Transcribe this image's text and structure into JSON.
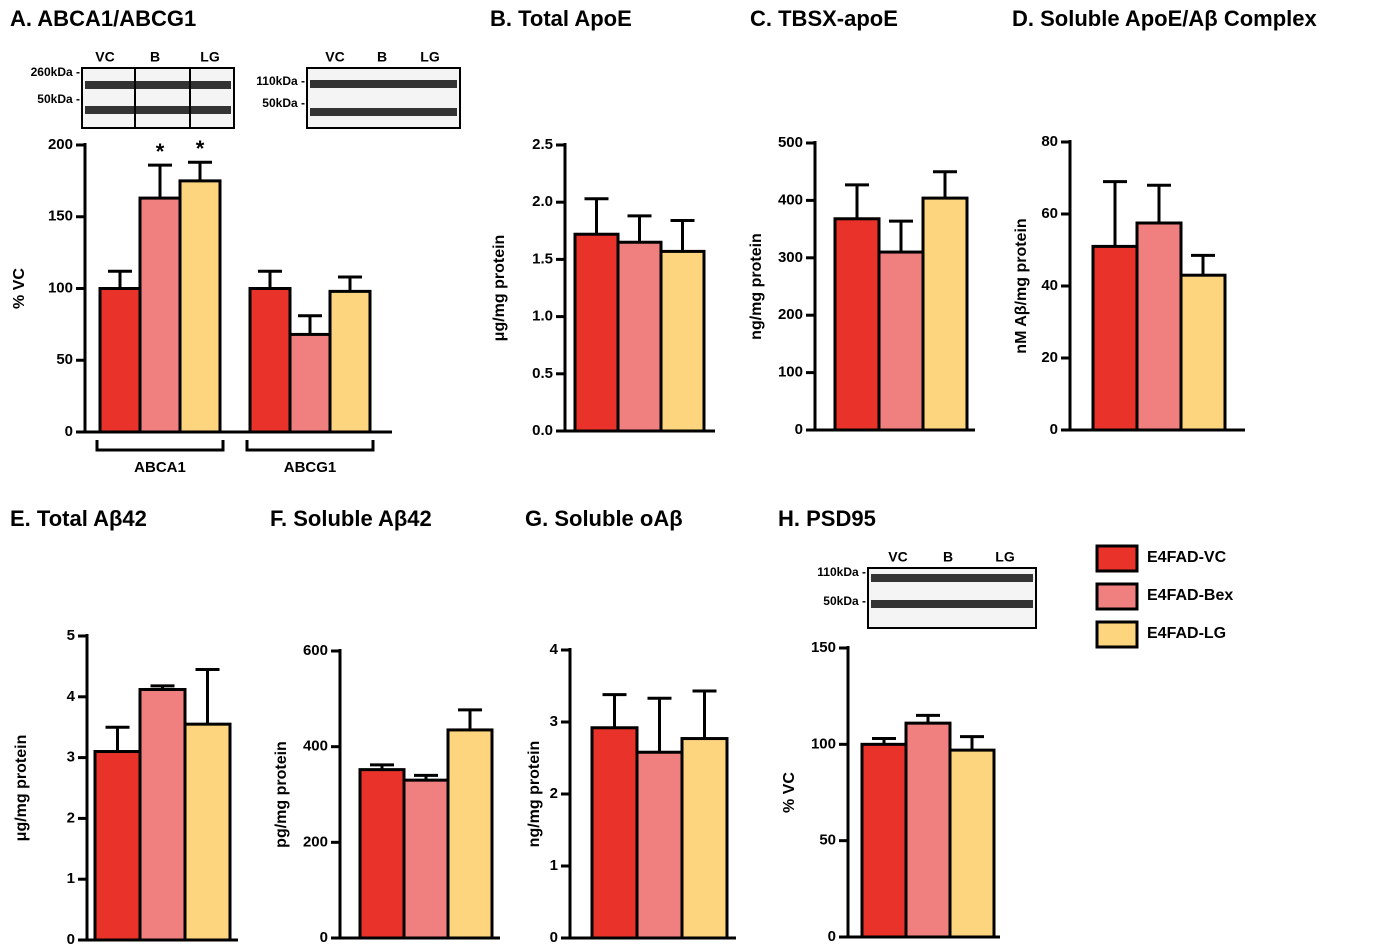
{
  "chart_data": [
    {
      "type": "bar",
      "title": "A. ABCA1/ABCG1",
      "ylabel": "% VC",
      "categories": [
        "ABCA1",
        "ABCG1"
      ],
      "series": [
        {
          "name": "E4FAD-VC",
          "color": "#e8322a",
          "values": [
            100,
            100
          ],
          "errors": [
            12,
            12
          ],
          "annotations": [
            null,
            null
          ]
        },
        {
          "name": "E4FAD-Bex",
          "color": "#f08080",
          "values": [
            163,
            68
          ],
          "errors": [
            23,
            13
          ],
          "annotations": [
            "*",
            null
          ]
        },
        {
          "name": "E4FAD-LG",
          "color": "#fdd57e",
          "values": [
            175,
            98
          ],
          "errors": [
            13,
            10
          ],
          "annotations": [
            "*",
            null
          ]
        }
      ],
      "ylim": [
        0,
        200
      ],
      "yticks": [
        0,
        50,
        100,
        150,
        200
      ],
      "blots": [
        {
          "lanes": [
            "VC",
            "B",
            "LG"
          ],
          "markers": [
            "260kDa -",
            "50kDa -"
          ]
        },
        {
          "lanes": [
            "VC",
            "B",
            "LG"
          ],
          "markers": [
            "110kDa -",
            "50kDa -"
          ]
        }
      ]
    },
    {
      "type": "bar",
      "title": "B. Total ApoE",
      "ylabel": "μg/mg protein",
      "values": [
        1.72,
        1.65,
        1.57
      ],
      "errors": [
        0.31,
        0.23,
        0.27
      ],
      "ylim": [
        0,
        2.5
      ],
      "yticks": [
        {
          "value": 0,
          "label": "0.0"
        },
        0.5,
        {
          "value": 1,
          "label": "1.0"
        },
        1.5,
        {
          "value": 2,
          "label": "2.0"
        },
        2.5
      ]
    },
    {
      "type": "bar",
      "title": "C. TBSX-apoE",
      "ylabel": "ng/mg protein",
      "values": [
        368,
        310,
        404
      ],
      "errors": [
        59,
        54,
        46
      ],
      "ylim": [
        0,
        500
      ],
      "yticks": [
        0,
        100,
        200,
        300,
        400,
        500
      ]
    },
    {
      "type": "bar",
      "title": "D. Soluble ApoE/Aβ Complex",
      "ylabel": "nM Aβ/mg protein",
      "values": [
        51,
        57.5,
        43
      ],
      "errors": [
        18,
        10.5,
        5.5
      ],
      "ylim": [
        0,
        80
      ],
      "yticks": [
        0,
        20,
        40,
        60,
        80
      ]
    },
    {
      "type": "bar",
      "title": "E. Total Aβ42",
      "ylabel": "μg/mg protein",
      "values": [
        3.1,
        4.12,
        3.55
      ],
      "errors": [
        0.4,
        0.06,
        0.9
      ],
      "ylim": [
        0,
        5
      ],
      "yticks": [
        0,
        1,
        2,
        3,
        4,
        5
      ]
    },
    {
      "type": "bar",
      "title": "F. Soluble Aβ42",
      "ylabel": "pg/mg protein",
      "values": [
        352,
        330,
        435
      ],
      "errors": [
        10,
        10,
        42
      ],
      "ylim": [
        0,
        600
      ],
      "yticks": [
        0,
        200,
        400,
        600
      ]
    },
    {
      "type": "bar",
      "title": "G. Soluble oAβ",
      "ylabel": "ng/mg protein",
      "values": [
        2.92,
        2.58,
        2.77
      ],
      "errors": [
        0.46,
        0.75,
        0.66
      ],
      "ylim": [
        0,
        4
      ],
      "yticks": [
        0,
        1,
        2,
        3,
        4
      ]
    },
    {
      "type": "bar",
      "title": "H. PSD95",
      "ylabel": "% VC",
      "values": [
        100,
        111,
        97
      ],
      "errors": [
        3,
        4,
        7
      ],
      "ylim": [
        0,
        150
      ],
      "yticks": [
        0,
        50,
        100,
        150
      ],
      "blots": [
        {
          "lanes": [
            "VC",
            "B",
            "LG"
          ],
          "markers": [
            "110kDa -",
            "50kDa -"
          ]
        }
      ]
    }
  ]
}
